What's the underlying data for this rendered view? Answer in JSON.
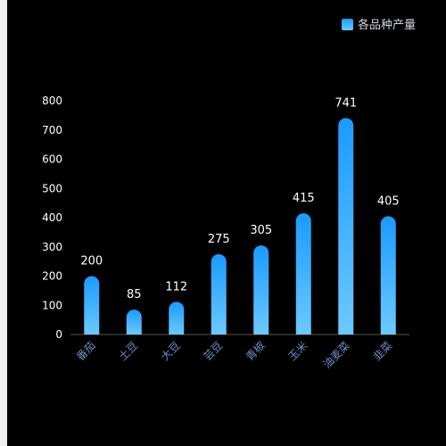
{
  "chart_data": {
    "type": "bar",
    "categories": [
      "番茄",
      "土豆",
      "大豆",
      "芸豆",
      "青椒",
      "玉米",
      "油麦菜",
      "韭菜"
    ],
    "series": [
      {
        "name": "各品种产量",
        "values": [
          200,
          85,
          112,
          275,
          305,
          415,
          741,
          405
        ]
      }
    ],
    "y_ticks": [
      0,
      100,
      200,
      300,
      400,
      500,
      600,
      700,
      800
    ],
    "ylim": [
      0,
      800
    ],
    "legend_position": "top-right",
    "grid": false,
    "colors": {
      "bar_top": "#1a9bff",
      "bar_bottom": "#6cc9ff",
      "axis": "#555555"
    }
  }
}
